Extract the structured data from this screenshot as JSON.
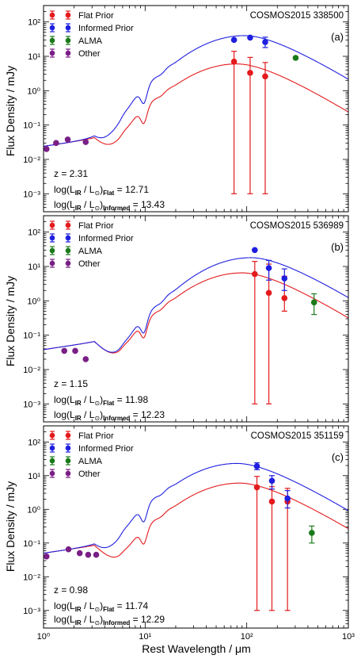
{
  "figure": {
    "xlabel": "Rest Wavelength / μm",
    "ylabel": "Flux Density / mJy",
    "legend": [
      "Flat Prior",
      "Informed Prior",
      "ALMA",
      "Other"
    ],
    "colors": {
      "flat": "#e41a1c",
      "informed": "#1f1fe0",
      "alma": "#1a7a1a",
      "other": "#7a1f86"
    }
  },
  "chart_data": [
    {
      "type": "scatter",
      "title": "COSMOS2015 338500",
      "panel_label": "(a)",
      "xscale": "log",
      "yscale": "log",
      "xlim": [
        1,
        1000
      ],
      "ylim": [
        0.0003,
        300
      ],
      "xticklabels": [
        "10⁰",
        "10¹",
        "10²",
        "10³"
      ],
      "yticklabels": [
        "10⁻³",
        "10⁻²",
        "10⁻¹",
        "10⁰",
        "10¹",
        "10²"
      ],
      "legend_position": "top-left",
      "annotations": {
        "z": "z = 2.31",
        "lir_flat": "12.71",
        "lir_informed": "13.43"
      },
      "series": [
        {
          "name": "Flat Prior",
          "model_peak_wavelength": 80,
          "model_peak_flux": 6,
          "points": [
            {
              "x": 75,
              "y": 7,
              "yerr_low": 6.999,
              "yerr_high": 7
            },
            {
              "x": 108,
              "y": 3.3,
              "yerr_low": 3.299,
              "yerr_high": 6
            },
            {
              "x": 152,
              "y": 2.6,
              "yerr_low": 2.599,
              "yerr_high": 4
            }
          ]
        },
        {
          "name": "Informed Prior",
          "model_peak_wavelength": 95,
          "model_peak_flux": 40,
          "points": [
            {
              "x": 75,
              "y": 30
            },
            {
              "x": 108,
              "y": 35
            },
            {
              "x": 152,
              "y": 26,
              "yerr_low": 8,
              "yerr_high": 10
            }
          ]
        },
        {
          "name": "ALMA",
          "points": [
            {
              "x": 303,
              "y": 9
            }
          ]
        },
        {
          "name": "Other",
          "points": [
            {
              "x": 1.07,
              "y": 0.02
            },
            {
              "x": 1.33,
              "y": 0.03
            },
            {
              "x": 1.73,
              "y": 0.038
            },
            {
              "x": 2.6,
              "y": 0.032
            }
          ]
        }
      ]
    },
    {
      "type": "scatter",
      "title": "COSMOS2015 536989",
      "panel_label": "(b)",
      "xscale": "log",
      "yscale": "log",
      "xlim": [
        1,
        1000
      ],
      "ylim": [
        0.0003,
        300
      ],
      "xticklabels": [
        "10⁰",
        "10¹",
        "10²",
        "10³"
      ],
      "yticklabels": [
        "10⁻³",
        "10⁻²",
        "10⁻¹",
        "10⁰",
        "10¹",
        "10²"
      ],
      "legend_position": "top-left",
      "annotations": {
        "z": "z = 1.15",
        "lir_flat": "11.98",
        "lir_informed": "12.23"
      },
      "series": [
        {
          "name": "Flat Prior",
          "model_peak_wavelength": 90,
          "model_peak_flux": 6.5,
          "points": [
            {
              "x": 120,
              "y": 6,
              "yerr_low": 5.999,
              "yerr_high": 8
            },
            {
              "x": 165,
              "y": 1.7,
              "yerr_low": 1.699,
              "yerr_high": 10
            },
            {
              "x": 235,
              "y": 1.2,
              "yerr_low": 0.7,
              "yerr_high": 4
            }
          ]
        },
        {
          "name": "Informed Prior",
          "model_peak_wavelength": 110,
          "model_peak_flux": 18,
          "points": [
            {
              "x": 120,
              "y": 30
            },
            {
              "x": 165,
              "y": 9,
              "yerr_low": 5,
              "yerr_high": 6
            },
            {
              "x": 235,
              "y": 4.5,
              "yerr_low": 2.5,
              "yerr_high": 4
            }
          ]
        },
        {
          "name": "ALMA",
          "points": [
            {
              "x": 460,
              "y": 0.9,
              "yerr_low": 0.5,
              "yerr_high": 0.7
            }
          ]
        },
        {
          "name": "Other",
          "points": [
            {
              "x": 1.6,
              "y": 0.035
            },
            {
              "x": 2.05,
              "y": 0.035
            },
            {
              "x": 2.6,
              "y": 0.02
            }
          ]
        }
      ]
    },
    {
      "type": "scatter",
      "title": "COSMOS2015 351159",
      "panel_label": "(c)",
      "xscale": "log",
      "yscale": "log",
      "xlim": [
        1,
        1000
      ],
      "ylim": [
        0.0003,
        300
      ],
      "xticklabels": [
        "10⁰",
        "10¹",
        "10²",
        "10³"
      ],
      "yticklabels": [
        "10⁻³",
        "10⁻²",
        "10⁻¹",
        "10⁰",
        "10¹",
        "10²"
      ],
      "legend_position": "top-left",
      "annotations": {
        "z": "z = 0.98",
        "lir_flat": "11.74",
        "lir_informed": "12.29"
      },
      "series": [
        {
          "name": "Flat Prior",
          "model_peak_wavelength": 85,
          "model_peak_flux": 6,
          "points": [
            {
              "x": 126,
              "y": 4.5,
              "yerr_low": 4.499,
              "yerr_high": 5
            },
            {
              "x": 177,
              "y": 1.7,
              "yerr_low": 1.699,
              "yerr_high": 3
            },
            {
              "x": 252,
              "y": 1.7,
              "yerr_low": 1.699,
              "yerr_high": 2.5
            }
          ]
        },
        {
          "name": "Informed Prior",
          "model_peak_wavelength": 80,
          "model_peak_flux": 23,
          "points": [
            {
              "x": 126,
              "y": 19,
              "yerr_low": 4,
              "yerr_high": 5
            },
            {
              "x": 177,
              "y": 7,
              "yerr_low": 3,
              "yerr_high": 3
            },
            {
              "x": 252,
              "y": 2.1,
              "yerr_low": 1,
              "yerr_high": 1.5
            }
          ]
        },
        {
          "name": "ALMA",
          "points": [
            {
              "x": 437,
              "y": 0.2,
              "yerr_low": 0.1,
              "yerr_high": 0.12
            }
          ]
        },
        {
          "name": "Other",
          "points": [
            {
              "x": 1.07,
              "y": 0.04
            },
            {
              "x": 1.76,
              "y": 0.065
            },
            {
              "x": 2.27,
              "y": 0.05
            },
            {
              "x": 2.75,
              "y": 0.045
            },
            {
              "x": 3.3,
              "y": 0.045
            }
          ]
        }
      ]
    }
  ]
}
